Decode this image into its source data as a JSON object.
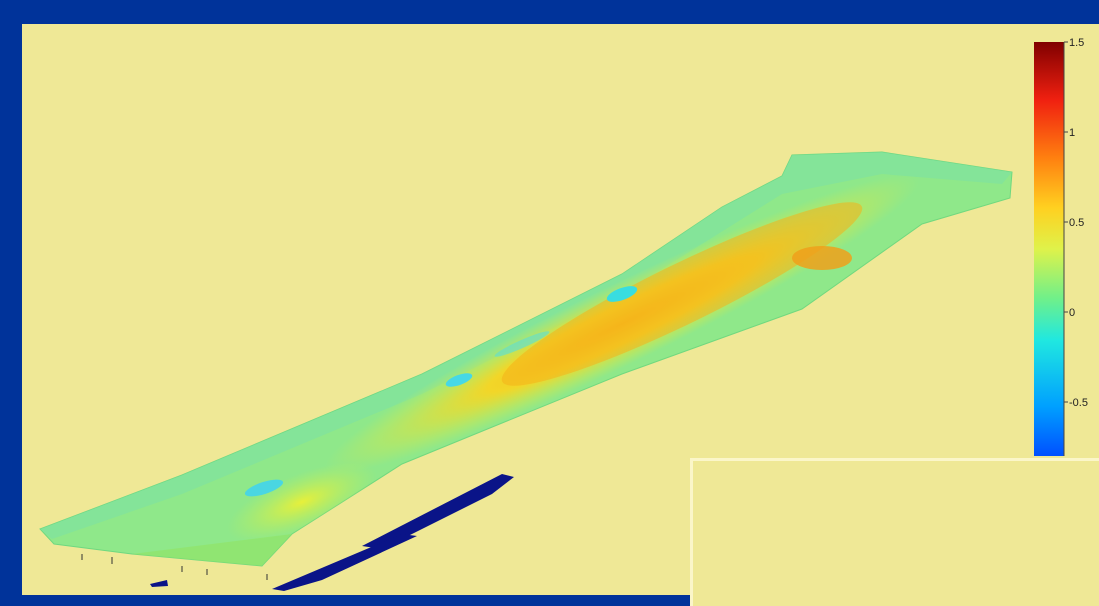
{
  "chart_data": {
    "type": "heatmap",
    "title": "",
    "xlabel": "",
    "ylabel": "",
    "colormap": "jet",
    "colorbar": {
      "min": -0.8,
      "max": 1.5,
      "ticks": [
        {
          "value": 1.5,
          "label": "1.5"
        },
        {
          "value": 1,
          "label": "1"
        },
        {
          "value": 0.5,
          "label": "0.5"
        },
        {
          "value": 0,
          "label": "0"
        },
        {
          "value": -0.5,
          "label": "-0.5"
        }
      ]
    },
    "surface_regions": [
      {
        "name": "background",
        "value": 0.0
      },
      {
        "name": "central-ridge",
        "value": 0.45
      },
      {
        "name": "upper-right-high",
        "value": 0.6
      },
      {
        "name": "left-warm-patch",
        "value": 0.35
      },
      {
        "name": "cyan-depressions",
        "value": -0.4
      },
      {
        "name": "deep-channel",
        "value": -2.0
      }
    ]
  },
  "colors": {
    "frame": "#00339a",
    "panel": "#efe896",
    "colorbar_top": "#800000",
    "colorbar_bottom": "#0050ff"
  }
}
